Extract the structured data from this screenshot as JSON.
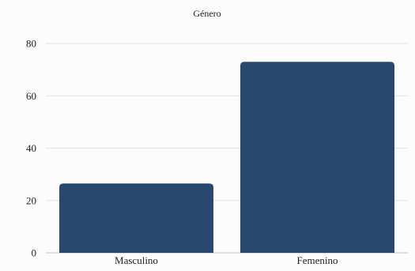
{
  "chart_data": {
    "type": "bar",
    "title": "Género",
    "categories": [
      "Masculino",
      "Femenino"
    ],
    "values": [
      26.5,
      73
    ],
    "xlabel": "",
    "ylabel": "",
    "ylim": [
      0,
      80
    ],
    "yticks": [
      "0",
      "20",
      "40",
      "60",
      "80"
    ],
    "grid": true,
    "legend": "none",
    "colors": {
      "bar": "#29486f"
    }
  }
}
